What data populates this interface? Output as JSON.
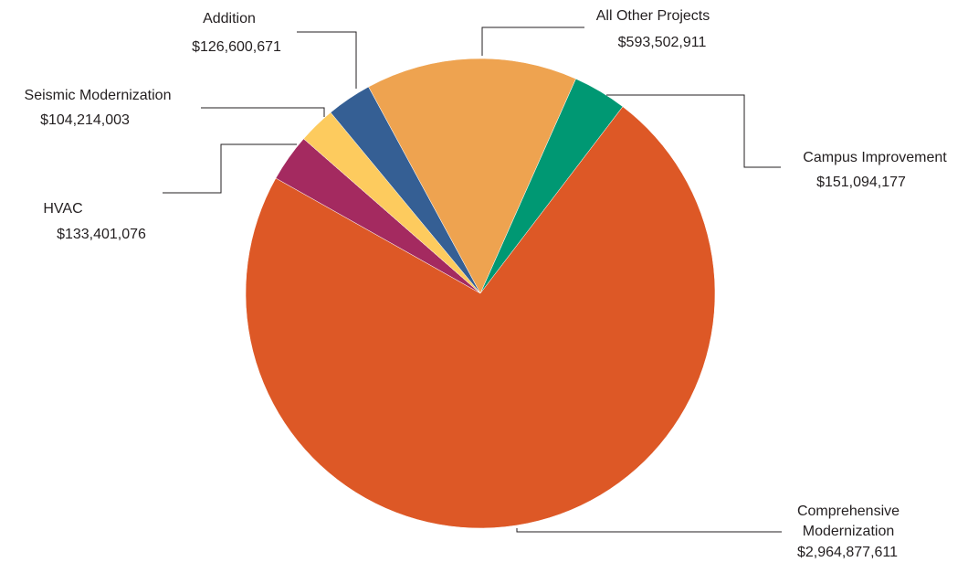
{
  "chart_data": {
    "type": "pie",
    "title": "",
    "slices": [
      {
        "label": "Campus Improvement",
        "value_label": "$151,094,177",
        "value": 151094177,
        "color": "#009873"
      },
      {
        "label": "Comprehensive Modernization",
        "label_lines": [
          "Comprehensive",
          "Modernization"
        ],
        "value_label": "$2,964,877,611",
        "value": 2964877611,
        "color": "#dd5826"
      },
      {
        "label": "HVAC",
        "value_label": "$133,401,076",
        "value": 133401076,
        "color": "#a42a60"
      },
      {
        "label": "Seismic Modernization",
        "value_label": "$104,214,003",
        "value": 104214003,
        "color": "#fdcb5e"
      },
      {
        "label": "Addition",
        "value_label": "$126,600,671",
        "value": 126600671,
        "color": "#355f94"
      },
      {
        "label": "All Other Projects",
        "value_label": "$593,502,911",
        "value": 593502911,
        "color": "#eea350"
      }
    ],
    "start_angle_deg": 24,
    "direction": "clockwise",
    "legend": "none",
    "labels": "outside-with-leader-lines"
  }
}
